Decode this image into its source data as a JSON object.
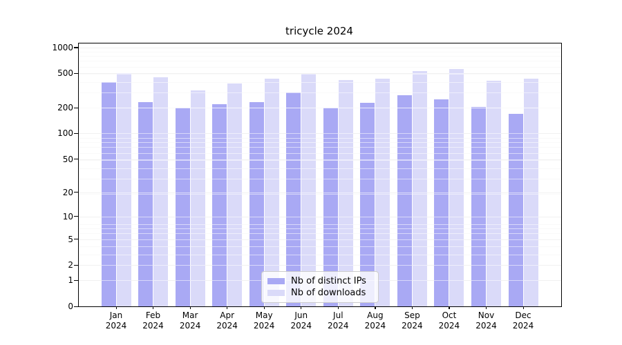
{
  "title": "tricycle 2024",
  "legend": {
    "items": [
      {
        "label": "Nb of distinct IPs",
        "color": "#a9a9f4"
      },
      {
        "label": "Nb of downloads",
        "color": "#dadaf9"
      }
    ]
  },
  "chart_data": {
    "type": "bar",
    "title": "tricycle 2024",
    "categories": [
      "Jan 2024",
      "Feb 2024",
      "Mar 2024",
      "Apr 2024",
      "May 2024",
      "Jun 2024",
      "Jul 2024",
      "Aug 2024",
      "Sep 2024",
      "Oct 2024",
      "Nov 2024",
      "Dec 2024"
    ],
    "x_months": [
      "Jan",
      "Feb",
      "Mar",
      "Apr",
      "May",
      "Jun",
      "Jul",
      "Aug",
      "Sep",
      "Oct",
      "Nov",
      "Dec"
    ],
    "x_year": "2024",
    "series": [
      {
        "name": "Nb of distinct IPs",
        "color": "#a9a9f4",
        "values": [
          400,
          230,
          200,
          218,
          230,
          300,
          200,
          226,
          280,
          250,
          204,
          170
        ]
      },
      {
        "name": "Nb of downloads",
        "color": "#dadaf9",
        "values": [
          500,
          452,
          315,
          380,
          435,
          492,
          417,
          435,
          532,
          560,
          415,
          435
        ]
      }
    ],
    "y_ticks": [
      0,
      1,
      2,
      5,
      10,
      20,
      50,
      100,
      200,
      500,
      1000
    ],
    "scale": "log10(1+x)",
    "ylim": [
      0,
      1114
    ],
    "grid": "on, light gray, drawn over bars",
    "legend_position": "lower center inside plot"
  }
}
